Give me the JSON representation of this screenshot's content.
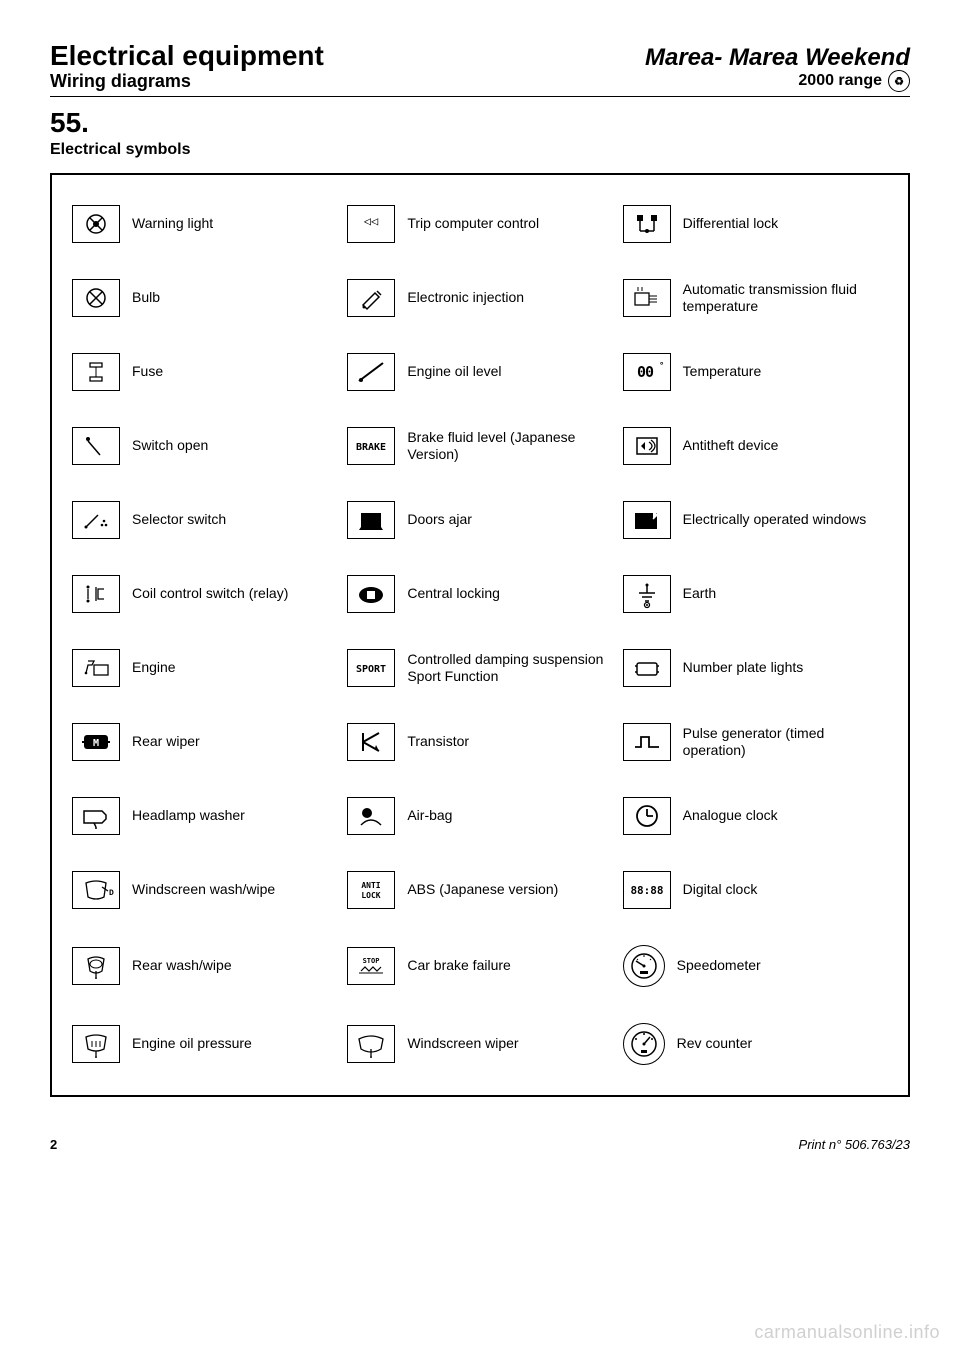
{
  "header": {
    "title_left": "Electrical equipment",
    "title_right": "Marea- Marea Weekend",
    "sub_left": "Wiring diagrams",
    "sub_right": "2000 range"
  },
  "section": {
    "number": "55.",
    "title": "Electrical symbols"
  },
  "rows": [
    {
      "c1": {
        "icon": "warning-light",
        "text": null,
        "label": "Warning light"
      },
      "c2": {
        "icon": "trip-computer",
        "text": "◁◁",
        "label": "Trip computer control"
      },
      "c3": {
        "icon": "diff-lock",
        "text": null,
        "label": "Differential lock"
      }
    },
    {
      "c1": {
        "icon": "bulb",
        "text": null,
        "label": "Bulb"
      },
      "c2": {
        "icon": "injection",
        "text": null,
        "label": "Electronic injection"
      },
      "c3": {
        "icon": "at-fluid",
        "text": null,
        "label": "Automatic transmission fluid temperature"
      }
    },
    {
      "c1": {
        "icon": "fuse",
        "text": null,
        "label": "Fuse"
      },
      "c2": {
        "icon": "oil-level",
        "text": null,
        "label": "Engine oil level"
      },
      "c3": {
        "icon": "temperature",
        "text": "00°",
        "label": "Temperature"
      }
    },
    {
      "c1": {
        "icon": "switch-open",
        "text": null,
        "label": "Switch open"
      },
      "c2": {
        "icon": "brake",
        "text": "BRAKE",
        "label": "Brake fluid level (Japanese Version)"
      },
      "c3": {
        "icon": "antitheft",
        "text": null,
        "label": "Antitheft device"
      }
    },
    {
      "c1": {
        "icon": "selector",
        "text": null,
        "label": "Selector switch"
      },
      "c2": {
        "icon": "doors-ajar",
        "text": null,
        "label": "Doors ajar"
      },
      "c3": {
        "icon": "windows",
        "text": null,
        "label": "Electrically operated windows"
      }
    },
    {
      "c1": {
        "icon": "coil-relay",
        "text": null,
        "label": "Coil control switch (relay)"
      },
      "c2": {
        "icon": "central-lock",
        "text": null,
        "label": "Central locking"
      },
      "c3": {
        "icon": "earth",
        "text": null,
        "label": "Earth"
      }
    },
    {
      "c1": {
        "icon": "engine",
        "text": null,
        "label": "Engine"
      },
      "c2": {
        "icon": "sport",
        "text": "SPORT",
        "label": "Controlled damping suspension Sport Function"
      },
      "c3": {
        "icon": "plate-lights",
        "text": null,
        "label": "Number plate lights"
      }
    },
    {
      "c1": {
        "icon": "rear-wiper",
        "text": null,
        "label": "Rear wiper"
      },
      "c2": {
        "icon": "transistor",
        "text": null,
        "label": "Transistor"
      },
      "c3": {
        "icon": "pulse",
        "text": null,
        "label": "Pulse generator (timed operation)"
      }
    },
    {
      "c1": {
        "icon": "headlamp-washer",
        "text": null,
        "label": "Headlamp washer"
      },
      "c2": {
        "icon": "airbag",
        "text": null,
        "label": "Air-bag"
      },
      "c3": {
        "icon": "analogue-clock",
        "text": null,
        "label": "Analogue clock"
      }
    },
    {
      "c1": {
        "icon": "windscreen-wash",
        "text": null,
        "label": "Windscreen wash/wipe"
      },
      "c2": {
        "icon": "antilock",
        "text": "ANTI LOCK",
        "label": "ABS (Japanese version)"
      },
      "c3": {
        "icon": "digital-clock",
        "text": "88:88",
        "label": "Digital clock"
      }
    },
    {
      "c1": {
        "icon": "rear-wash",
        "text": null,
        "label": "Rear wash/wipe"
      },
      "c2": {
        "icon": "brake-fail",
        "text": "STOP",
        "label": "Car brake failure"
      },
      "c3": {
        "icon": "speedometer",
        "text": null,
        "label": "Speedometer",
        "round": true
      }
    },
    {
      "c1": {
        "icon": "oil-pressure",
        "text": null,
        "label": "Engine oil pressure"
      },
      "c2": {
        "icon": "windscreen-wiper",
        "text": null,
        "label": "Windscreen wiper"
      },
      "c3": {
        "icon": "rev-counter",
        "text": null,
        "label": "Rev counter",
        "round": true
      }
    }
  ],
  "footer": {
    "page": "2",
    "print": "Print n° 506.763/23"
  },
  "watermark": "carmanualsonline.info",
  "colors": {
    "text": "#000000",
    "bg": "#ffffff",
    "watermark": "#d0d0d0"
  }
}
